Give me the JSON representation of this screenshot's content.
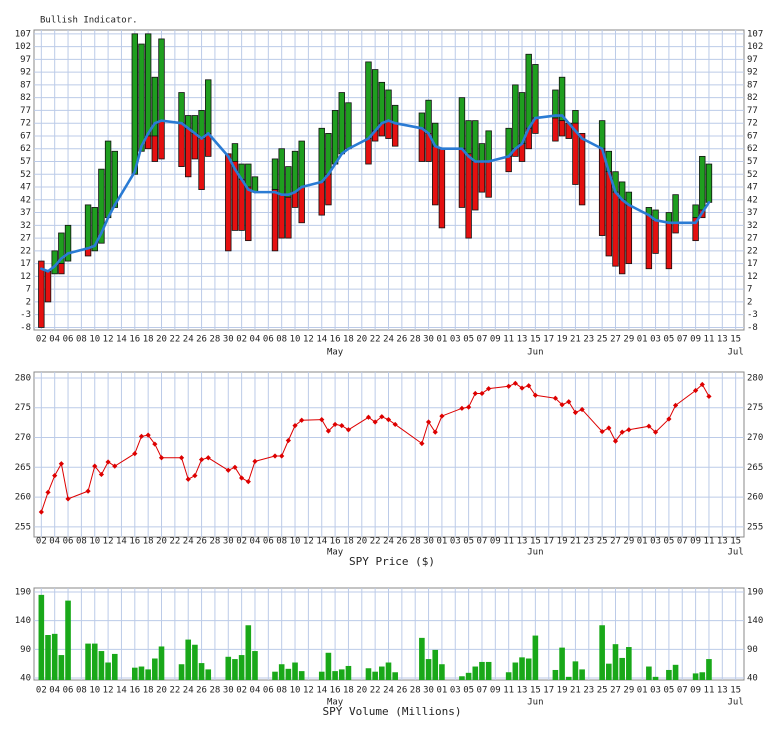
{
  "chart_data": [
    {
      "type": "indicator",
      "title": "Bullish Indicator.",
      "categories": [
        "02",
        null,
        "04",
        null,
        "06",
        null,
        "08",
        null,
        "10",
        null,
        "12",
        null,
        "14",
        null,
        "16",
        null,
        "18",
        null,
        "20",
        null,
        "22",
        null,
        "24",
        null,
        "26",
        null,
        "28",
        null,
        "30",
        null,
        "02",
        null,
        "04",
        null,
        "06",
        null,
        "08",
        null,
        "10",
        null,
        "12",
        null,
        "14",
        null,
        "16",
        null,
        "18",
        null,
        "20",
        null,
        "22",
        null,
        "24",
        null,
        "26",
        null,
        "28",
        null,
        "30",
        null,
        "01",
        null,
        "03",
        null,
        "05",
        null,
        "07",
        null,
        "09",
        null,
        "11",
        null,
        "13",
        null,
        "15",
        null,
        "17",
        null,
        "19",
        null,
        "21",
        null,
        "23",
        null,
        "25",
        null,
        "27",
        null,
        "29",
        null,
        "01",
        null,
        "03",
        null,
        "05",
        null,
        "07",
        null,
        "09",
        null,
        "11",
        null,
        "13",
        null,
        "15"
      ],
      "month_labels": [
        "May",
        "Jun",
        "Jul"
      ],
      "ylim": [
        -9,
        108.5
      ],
      "yticks": [
        107,
        102,
        97,
        92,
        87,
        82,
        77,
        72,
        67,
        62,
        57,
        52,
        47,
        42,
        37,
        32,
        27,
        22,
        17,
        12,
        7,
        2,
        -3,
        -8
      ],
      "grid": true,
      "series": [
        {
          "color": "#1f9e1f",
          "low": [
            null,
            null,
            13,
            17,
            18,
            null,
            null,
            23,
            22,
            25,
            35,
            39,
            null,
            null,
            52,
            61,
            67,
            67,
            73,
            null,
            null,
            72,
            70,
            68,
            66,
            68,
            null,
            null,
            null,
            57,
            50,
            47,
            45,
            null,
            null,
            46,
            44,
            43,
            45,
            47,
            null,
            null,
            49,
            52,
            56,
            60,
            62,
            null,
            null,
            66,
            69,
            72,
            73,
            72,
            null,
            null,
            null,
            70,
            68,
            63,
            null,
            null,
            null,
            62,
            60,
            57,
            57,
            57,
            null,
            null,
            59,
            62,
            64,
            70,
            74,
            null,
            null,
            74,
            73,
            null,
            72,
            null,
            null,
            null,
            62,
            53,
            45,
            42,
            40,
            null,
            null,
            36,
            34,
            null,
            33,
            33,
            null,
            null,
            35,
            38,
            41,
            null,
            null,
            null,
            null
          ],
          "high": [
            null,
            null,
            22,
            29,
            32,
            null,
            null,
            40,
            39,
            54,
            65,
            61,
            null,
            null,
            107,
            103,
            107,
            90,
            105,
            null,
            null,
            84,
            75,
            75,
            77,
            89,
            null,
            null,
            null,
            64,
            56,
            56,
            51,
            null,
            null,
            58,
            62,
            55,
            61,
            65,
            null,
            null,
            70,
            68,
            77,
            84,
            80,
            null,
            null,
            96,
            93,
            88,
            85,
            79,
            null,
            null,
            null,
            76,
            81,
            72,
            null,
            null,
            null,
            82,
            73,
            73,
            64,
            69,
            null,
            null,
            70,
            87,
            84,
            99,
            95,
            null,
            null,
            85,
            90,
            null,
            77,
            null,
            null,
            null,
            73,
            61,
            53,
            49,
            45,
            null,
            null,
            39,
            38,
            null,
            37,
            44,
            null,
            null,
            40,
            59,
            56,
            null,
            null,
            null,
            null
          ]
        },
        {
          "color": "#e41010",
          "low": [
            -8,
            2,
            null,
            13,
            null,
            null,
            null,
            20,
            null,
            null,
            null,
            null,
            null,
            null,
            null,
            null,
            62,
            57,
            58,
            null,
            null,
            55,
            51,
            58,
            46,
            59,
            null,
            null,
            22,
            30,
            30,
            26,
            null,
            null,
            null,
            22,
            27,
            27,
            39,
            33,
            null,
            null,
            36,
            40,
            null,
            null,
            null,
            null,
            null,
            56,
            65,
            67,
            66,
            63,
            null,
            null,
            null,
            57,
            57,
            40,
            31,
            null,
            null,
            39,
            27,
            38,
            45,
            43,
            null,
            null,
            53,
            59,
            57,
            62,
            68,
            null,
            null,
            65,
            67,
            66,
            48,
            40,
            null,
            null,
            28,
            20,
            16,
            13,
            17,
            null,
            null,
            15,
            21,
            null,
            15,
            29,
            null,
            null,
            26,
            35,
            null,
            null,
            null,
            null,
            null
          ],
          "high": [
            18,
            14,
            null,
            17,
            null,
            null,
            null,
            23,
            null,
            null,
            null,
            null,
            null,
            null,
            null,
            null,
            67,
            67,
            73,
            null,
            null,
            72,
            70,
            68,
            66,
            68,
            null,
            null,
            60,
            57,
            50,
            47,
            null,
            null,
            null,
            46,
            44,
            43,
            45,
            47,
            null,
            null,
            49,
            52,
            null,
            null,
            null,
            null,
            null,
            66,
            69,
            72,
            73,
            72,
            null,
            null,
            null,
            70,
            68,
            63,
            62,
            null,
            null,
            62,
            60,
            57,
            57,
            57,
            null,
            null,
            59,
            62,
            64,
            70,
            74,
            null,
            null,
            74,
            73,
            72,
            72,
            68,
            null,
            null,
            62,
            53,
            45,
            42,
            40,
            null,
            null,
            36,
            34,
            null,
            33,
            33,
            null,
            null,
            35,
            38,
            null,
            null,
            null,
            null,
            null
          ]
        },
        {
          "color": "#2a7bd4",
          "values": [
            15,
            14,
            16,
            19,
            21,
            null,
            null,
            23,
            24,
            29,
            35,
            40,
            null,
            null,
            53,
            63,
            68,
            72,
            73,
            null,
            null,
            72,
            70,
            68,
            66,
            68,
            null,
            null,
            59,
            54,
            50,
            46,
            45,
            null,
            null,
            45,
            44,
            44,
            45,
            47,
            null,
            null,
            49,
            52,
            56,
            60,
            62,
            null,
            null,
            66,
            69,
            72,
            73,
            72,
            null,
            null,
            null,
            70,
            68,
            63,
            62,
            null,
            null,
            62,
            59,
            57,
            57,
            57,
            null,
            null,
            59,
            62,
            64,
            70,
            74,
            null,
            null,
            75,
            75,
            72,
            69,
            66,
            null,
            null,
            62,
            53,
            45,
            42,
            40,
            null,
            null,
            36,
            34,
            null,
            33,
            33,
            null,
            null,
            33,
            37,
            41,
            null,
            null,
            null,
            null
          ]
        }
      ]
    },
    {
      "type": "line",
      "xlabel": "SPY Price ($)",
      "categories": [
        "02",
        null,
        "04",
        null,
        "06",
        null,
        "08",
        null,
        "10",
        null,
        "12",
        null,
        "14",
        null,
        "16",
        null,
        "18",
        null,
        "20",
        null,
        "22",
        null,
        "24",
        null,
        "26",
        null,
        "28",
        null,
        "30",
        null,
        "02",
        null,
        "04",
        null,
        "06",
        null,
        "08",
        null,
        "10",
        null,
        "12",
        null,
        "14",
        null,
        "16",
        null,
        "18",
        null,
        "20",
        null,
        "22",
        null,
        "24",
        null,
        "26",
        null,
        "28",
        null,
        "30",
        null,
        "01",
        null,
        "03",
        null,
        "05",
        null,
        "07",
        null,
        "09",
        null,
        "11",
        null,
        "13",
        null,
        "15",
        null,
        "17",
        null,
        "19",
        null,
        "21",
        null,
        "23",
        null,
        "25",
        null,
        "27",
        null,
        "29",
        null,
        "01",
        null,
        "03",
        null,
        "05",
        null,
        "07",
        null,
        "09",
        null,
        "11",
        null,
        "13",
        null,
        "15"
      ],
      "month_labels": [
        "May",
        "Jun",
        "Jul"
      ],
      "ylim": [
        253.3,
        281
      ],
      "yticks": [
        255,
        260,
        265,
        270,
        275,
        280
      ],
      "grid": true,
      "series": [
        {
          "color": "#dd0000",
          "values": [
            257.5,
            260.8,
            263.6,
            265.6,
            259.7,
            null,
            null,
            261.0,
            265.2,
            263.8,
            265.9,
            265.2,
            null,
            null,
            267.3,
            270.2,
            270.4,
            268.9,
            266.6,
            null,
            null,
            266.6,
            263.0,
            263.6,
            266.3,
            266.6,
            null,
            null,
            264.5,
            265.0,
            263.2,
            262.6,
            266.0,
            null,
            null,
            266.9,
            266.9,
            269.5,
            272.0,
            272.9,
            null,
            null,
            273.0,
            271.1,
            272.2,
            272.0,
            271.3,
            null,
            null,
            273.4,
            272.6,
            273.5,
            273.0,
            272.2,
            null,
            null,
            null,
            269.0,
            272.6,
            270.9,
            273.6,
            null,
            null,
            274.9,
            275.1,
            277.4,
            277.4,
            278.2,
            null,
            null,
            278.6,
            279.1,
            278.3,
            278.7,
            277.1,
            null,
            null,
            276.6,
            275.5,
            276.0,
            274.2,
            274.7,
            null,
            null,
            271.0,
            271.6,
            269.4,
            270.9,
            271.3,
            null,
            null,
            271.9,
            270.9,
            null,
            273.1,
            275.4,
            null,
            null,
            277.9,
            278.9,
            276.9,
            null,
            null,
            null,
            null
          ]
        }
      ]
    },
    {
      "type": "bar",
      "xlabel": "SPY Volume (Millions)",
      "categories": [
        "02",
        null,
        "04",
        null,
        "06",
        null,
        "08",
        null,
        "10",
        null,
        "12",
        null,
        "14",
        null,
        "16",
        null,
        "18",
        null,
        "20",
        null,
        "22",
        null,
        "24",
        null,
        "26",
        null,
        "28",
        null,
        "30",
        null,
        "02",
        null,
        "04",
        null,
        "06",
        null,
        "08",
        null,
        "10",
        null,
        "12",
        null,
        "14",
        null,
        "16",
        null,
        "18",
        null,
        "20",
        null,
        "22",
        null,
        "24",
        null,
        "26",
        null,
        "28",
        null,
        "30",
        null,
        "01",
        null,
        "03",
        null,
        "05",
        null,
        "07",
        null,
        "09",
        null,
        "11",
        null,
        "13",
        null,
        "15",
        null,
        "17",
        null,
        "19",
        null,
        "21",
        null,
        "23",
        null,
        "25",
        null,
        "27",
        null,
        "29",
        null,
        "01",
        null,
        "03",
        null,
        "05",
        null,
        "07",
        null,
        "09",
        null,
        "11",
        null,
        "13",
        null,
        "15"
      ],
      "month_labels": [
        "May",
        "Jun",
        "Jul"
      ],
      "ylim": [
        36.5,
        197
      ],
      "yticks": [
        40,
        90,
        140,
        190
      ],
      "grid": true,
      "series": [
        {
          "color": "#19a819",
          "values": [
            185,
            115,
            117,
            80,
            175,
            null,
            null,
            100,
            100,
            87,
            67,
            82,
            null,
            null,
            58,
            60,
            55,
            74,
            95,
            null,
            null,
            64,
            107,
            98,
            66,
            55,
            null,
            null,
            77,
            73,
            80,
            132,
            87,
            null,
            null,
            51,
            64,
            56,
            67,
            52,
            null,
            null,
            51,
            84,
            52,
            55,
            61,
            null,
            null,
            57,
            51,
            60,
            67,
            50,
            null,
            null,
            null,
            110,
            73,
            89,
            64,
            null,
            null,
            43,
            49,
            60,
            68,
            68,
            null,
            null,
            50,
            67,
            76,
            74,
            114,
            null,
            null,
            54,
            93,
            42,
            69,
            55,
            null,
            null,
            132,
            65,
            99,
            75,
            94,
            null,
            null,
            60,
            42,
            null,
            54,
            63,
            null,
            null,
            48,
            50,
            73,
            null,
            null,
            null,
            null
          ]
        }
      ]
    }
  ]
}
